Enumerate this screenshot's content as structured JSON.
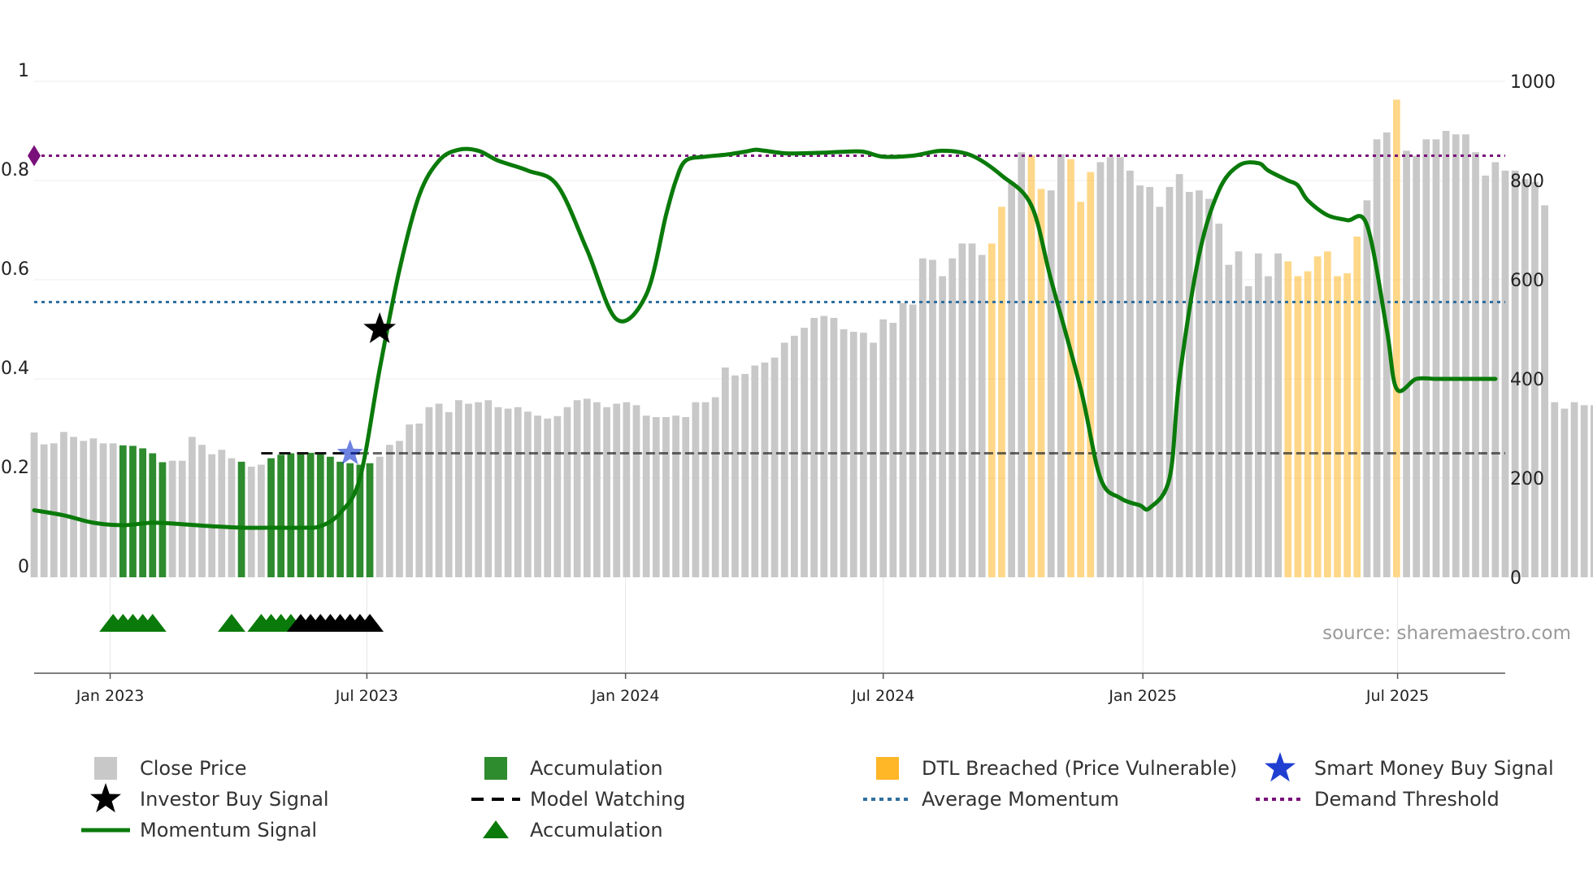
{
  "chart_data": {
    "type": "bar",
    "title": "",
    "source": "source: sharemaestro.com",
    "colors": {
      "close_price": "#c8c8c8",
      "accumulation": "#2e8b2e",
      "dtl_breached": "#ffb627",
      "momentum": "#0a7a0a",
      "average_momentum": "#2f6f9f",
      "demand_threshold": "#7a107a",
      "model_watching": "#111111",
      "investor_buy": "#000000",
      "smart_money": "#1f3fd1"
    },
    "left_axis": {
      "min": 0,
      "max": 1,
      "tick_values": [
        0,
        0.2,
        0.4,
        0.6,
        0.8,
        1
      ],
      "tick_labels": [
        "0",
        "0.2",
        "0.4",
        "0.6",
        "0.8",
        "1"
      ]
    },
    "right_axis": {
      "min": 0,
      "max": 1000,
      "tick_values": [
        0,
        200,
        400,
        600,
        800,
        1000
      ],
      "tick_labels": [
        "0",
        "200",
        "400",
        "600",
        "800",
        "1000"
      ]
    },
    "x_axis": {
      "start_week": 0,
      "end_week": 149,
      "tick_weeks": [
        7.7,
        33.7,
        59.9,
        86.0,
        112.3,
        138.1
      ],
      "tick_labels": [
        "Jan 2023",
        "Jul 2023",
        "Jan 2024",
        "Jul 2024",
        "Jan 2025",
        "Jul 2025"
      ]
    },
    "close_price": [
      292,
      268,
      270,
      293,
      283,
      275,
      280,
      270,
      270,
      266,
      265,
      260,
      250,
      232,
      235,
      235,
      283,
      267,
      248,
      257,
      240,
      233,
      223,
      227,
      240,
      247,
      250,
      252,
      251,
      248,
      243,
      233,
      230,
      227,
      230,
      243,
      267,
      275,
      308,
      310,
      343,
      350,
      333,
      357,
      350,
      353,
      357,
      343,
      340,
      343,
      334,
      326,
      320,
      325,
      343,
      357,
      360,
      353,
      343,
      350,
      353,
      347,
      326,
      323,
      323,
      326,
      323,
      353,
      353,
      363,
      423,
      407,
      410,
      427,
      433,
      443,
      473,
      487,
      503,
      523,
      527,
      523,
      500,
      495,
      493,
      473,
      520,
      513,
      553,
      550,
      643,
      640,
      607,
      643,
      673,
      673,
      650,
      673,
      747,
      797,
      857,
      850,
      783,
      780,
      853,
      843,
      757,
      817,
      837,
      847,
      847,
      820,
      790,
      787,
      747,
      787,
      813,
      777,
      780,
      763,
      713,
      630,
      657,
      587,
      653,
      607,
      653,
      637,
      607,
      617,
      647,
      657,
      607,
      613,
      687,
      760,
      883,
      897,
      963,
      860,
      850,
      883,
      883,
      900,
      893,
      893,
      857,
      810,
      837,
      820,
      820,
      803,
      797,
      750,
      353,
      340,
      353,
      347,
      347
    ],
    "accumulation_weeks": [
      9,
      10,
      11,
      12,
      13,
      21,
      24,
      25,
      26,
      27,
      28,
      29,
      30,
      31,
      32,
      33,
      34
    ],
    "dtl_breached_weeks": [
      97,
      98,
      101,
      102,
      105,
      106,
      107,
      127,
      128,
      129,
      130,
      131,
      132,
      133,
      134,
      138
    ],
    "momentum": {
      "x": [
        0,
        3,
        6,
        9,
        12,
        15,
        18,
        21,
        24,
        27,
        29,
        31,
        33,
        35,
        37,
        39,
        41,
        43,
        45,
        47,
        50,
        53,
        56,
        59,
        62,
        64,
        65,
        66,
        68,
        70,
        72,
        73,
        74,
        76,
        78,
        80,
        82,
        84,
        86,
        89,
        92,
        95,
        98,
        101,
        103,
        106,
        108,
        110,
        112,
        113,
        115,
        116,
        118,
        120,
        122,
        124,
        125,
        127,
        128,
        129,
        131,
        133,
        135,
        137,
        138,
        140,
        142,
        144,
        145,
        146,
        148
      ],
      "y": [
        0.135,
        0.125,
        0.11,
        0.105,
        0.11,
        0.107,
        0.103,
        0.1,
        0.1,
        0.1,
        0.103,
        0.13,
        0.2,
        0.42,
        0.62,
        0.77,
        0.84,
        0.862,
        0.86,
        0.84,
        0.82,
        0.79,
        0.66,
        0.52,
        0.57,
        0.73,
        0.8,
        0.84,
        0.848,
        0.852,
        0.858,
        0.862,
        0.86,
        0.855,
        0.855,
        0.856,
        0.858,
        0.858,
        0.848,
        0.85,
        0.86,
        0.85,
        0.81,
        0.75,
        0.6,
        0.38,
        0.2,
        0.16,
        0.145,
        0.14,
        0.2,
        0.4,
        0.65,
        0.78,
        0.83,
        0.835,
        0.82,
        0.8,
        0.79,
        0.76,
        0.73,
        0.72,
        0.71,
        0.5,
        0.38,
        0.4,
        0.4,
        0.4,
        0.4,
        0.4,
        0.4
      ]
    },
    "average_momentum": 0.555,
    "demand_threshold": 0.85,
    "model_watching": {
      "y": 0.25,
      "dash_from": 23,
      "dash_to": 33,
      "cont_from": 33,
      "cont_to": 149
    },
    "investor_buy_signal": {
      "week": 35,
      "value": 0.5
    },
    "smart_money_signal": {
      "week": 32,
      "value": 0.25
    },
    "accumulation_triangle_weeks": [
      8,
      9,
      10,
      11,
      12,
      20,
      23,
      24,
      25,
      26
    ],
    "black_triangle_weeks": [
      27,
      28,
      29,
      30,
      31,
      32,
      33,
      34
    ],
    "legend": [
      {
        "id": "close",
        "label": "Close Price",
        "symbol": "gray-square"
      },
      {
        "id": "accumulation_bar",
        "label": "Accumulation",
        "symbol": "green-square"
      },
      {
        "id": "dtl",
        "label": "DTL Breached (Price Vulnerable)",
        "symbol": "orange-square"
      },
      {
        "id": "smart_money",
        "label": "Smart Money Buy Signal",
        "symbol": "blue-star"
      },
      {
        "id": "investor_buy",
        "label": "Investor Buy Signal",
        "symbol": "black-star"
      },
      {
        "id": "model_watching",
        "label": "Model Watching",
        "symbol": "black-dash"
      },
      {
        "id": "avg_momentum",
        "label": "Average Momentum",
        "symbol": "blue-dot"
      },
      {
        "id": "demand_threshold",
        "label": "Demand Threshold",
        "symbol": "purple-dot"
      },
      {
        "id": "momentum",
        "label": "Momentum Signal",
        "symbol": "green-line"
      },
      {
        "id": "accumulation_tri",
        "label": "Accumulation",
        "symbol": "green-triangle"
      }
    ]
  }
}
